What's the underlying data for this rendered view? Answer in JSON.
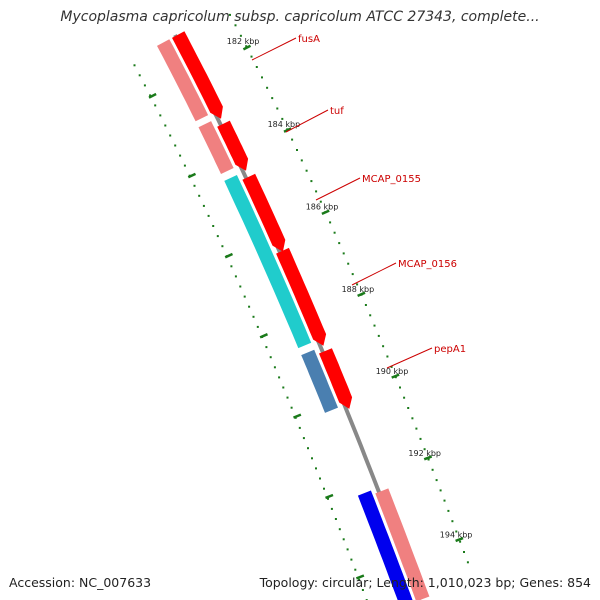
{
  "title": "Mycoplasma capricolum subsp. capricolum ATCC 27343, complete...",
  "footer": {
    "accession": "Accession: NC_007633",
    "summary": "Topology: circular; Length: 1,010,023 bp; Genes: 854"
  },
  "ruler": {
    "unit": "kbp",
    "ticks": [
      {
        "kbp": 182,
        "label": "182 kbp"
      },
      {
        "kbp": 184,
        "label": "184 kbp"
      },
      {
        "kbp": 186,
        "label": "186 kbp"
      },
      {
        "kbp": 188,
        "label": "188 kbp"
      },
      {
        "kbp": 190,
        "label": "190 kbp"
      },
      {
        "kbp": 192,
        "label": "192 kbp"
      },
      {
        "kbp": 194,
        "label": "194 kbp"
      }
    ]
  },
  "gene_labels": [
    "fusA",
    "tuf",
    "MCAP_0155",
    "MCAP_0156",
    "pepA1"
  ],
  "colors": {
    "background": "#ffffff",
    "backbone": "#888888",
    "tick_mark": "#1a7a1a",
    "cds_strand_a": "#ff0000",
    "gene_strand_a": "#f08080",
    "teal_gene": "#20cccc",
    "steel_gene": "#4a7fb0",
    "blue_gene": "#0000ee",
    "label": "#cc0000"
  }
}
